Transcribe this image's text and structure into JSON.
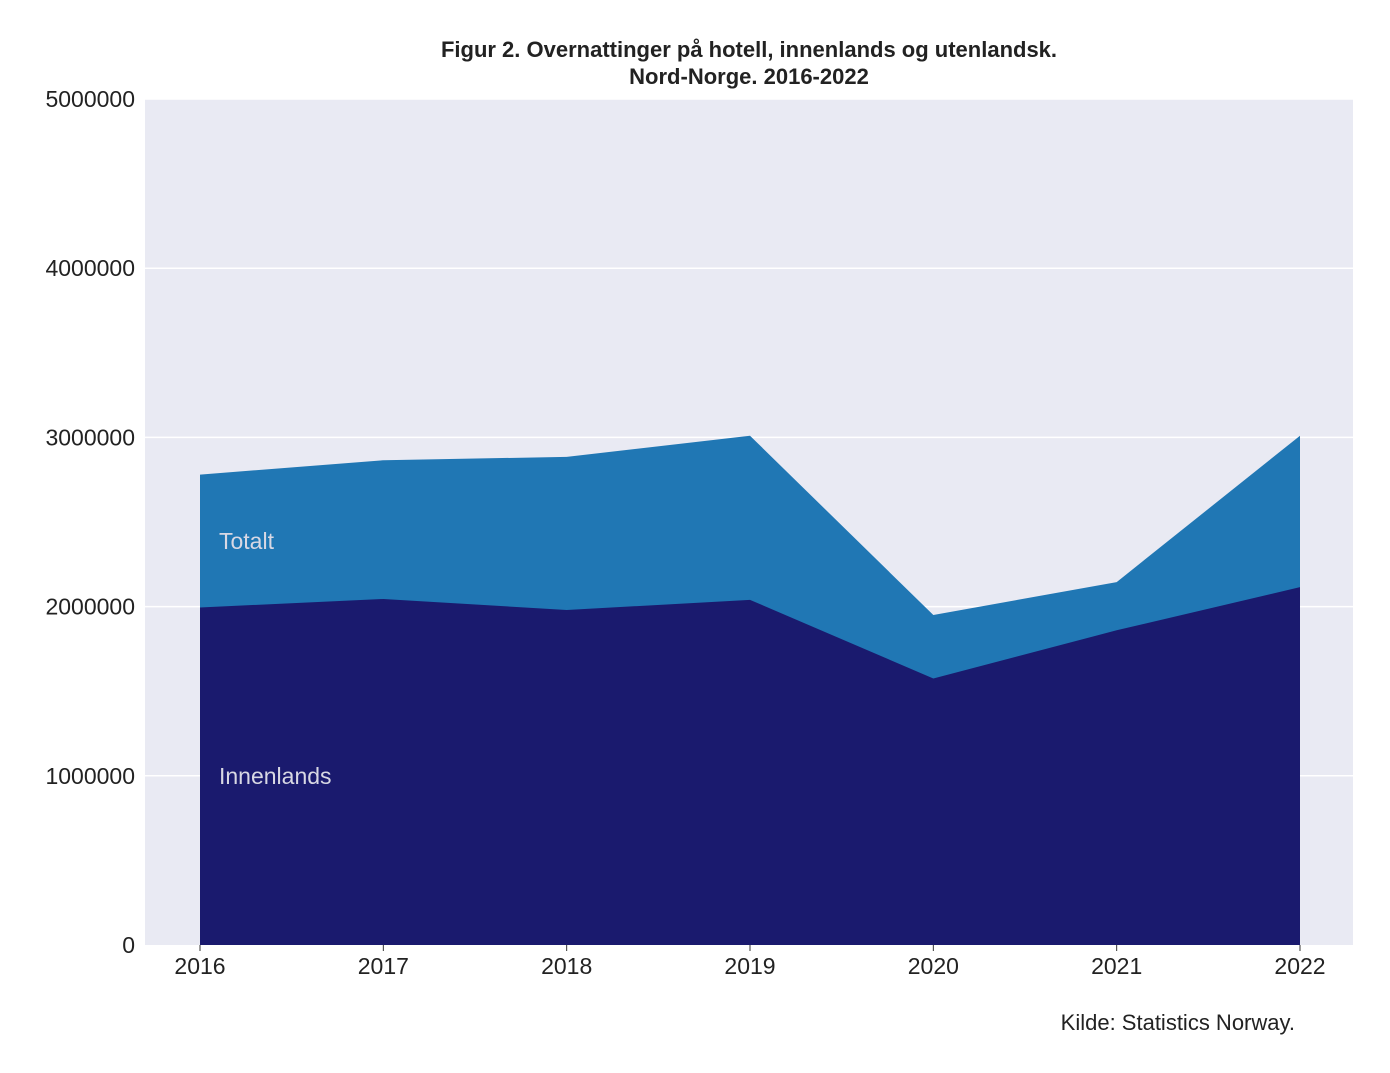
{
  "chart_data": {
    "type": "area",
    "title_lines": [
      "Figur 2. Overnattinger på hotell, innenlands og utenlandsk.",
      "Nord-Norge. 2016-2022"
    ],
    "xlabel": "",
    "ylabel": "",
    "x": [
      "2016",
      "2017",
      "2018",
      "2019",
      "2020",
      "2021",
      "2022"
    ],
    "ylim": [
      0,
      5000000
    ],
    "yticks": [
      0,
      1000000,
      2000000,
      3000000,
      4000000,
      5000000
    ],
    "ytick_labels": [
      "0",
      "1000000",
      "2000000",
      "3000000",
      "4000000",
      "5000000"
    ],
    "grid": true,
    "series": [
      {
        "name": "Totalt",
        "color": "#2077b4",
        "values": [
          2780000,
          2865000,
          2885000,
          3010000,
          1950000,
          2145000,
          3010000
        ]
      },
      {
        "name": "Innenlands",
        "color": "#1a1a6e",
        "values": [
          1995000,
          2045000,
          1980000,
          2040000,
          1575000,
          1860000,
          2115000
        ]
      }
    ],
    "plot_background": "#e9eaf3",
    "source": "Kilde: Statistics Norway."
  }
}
